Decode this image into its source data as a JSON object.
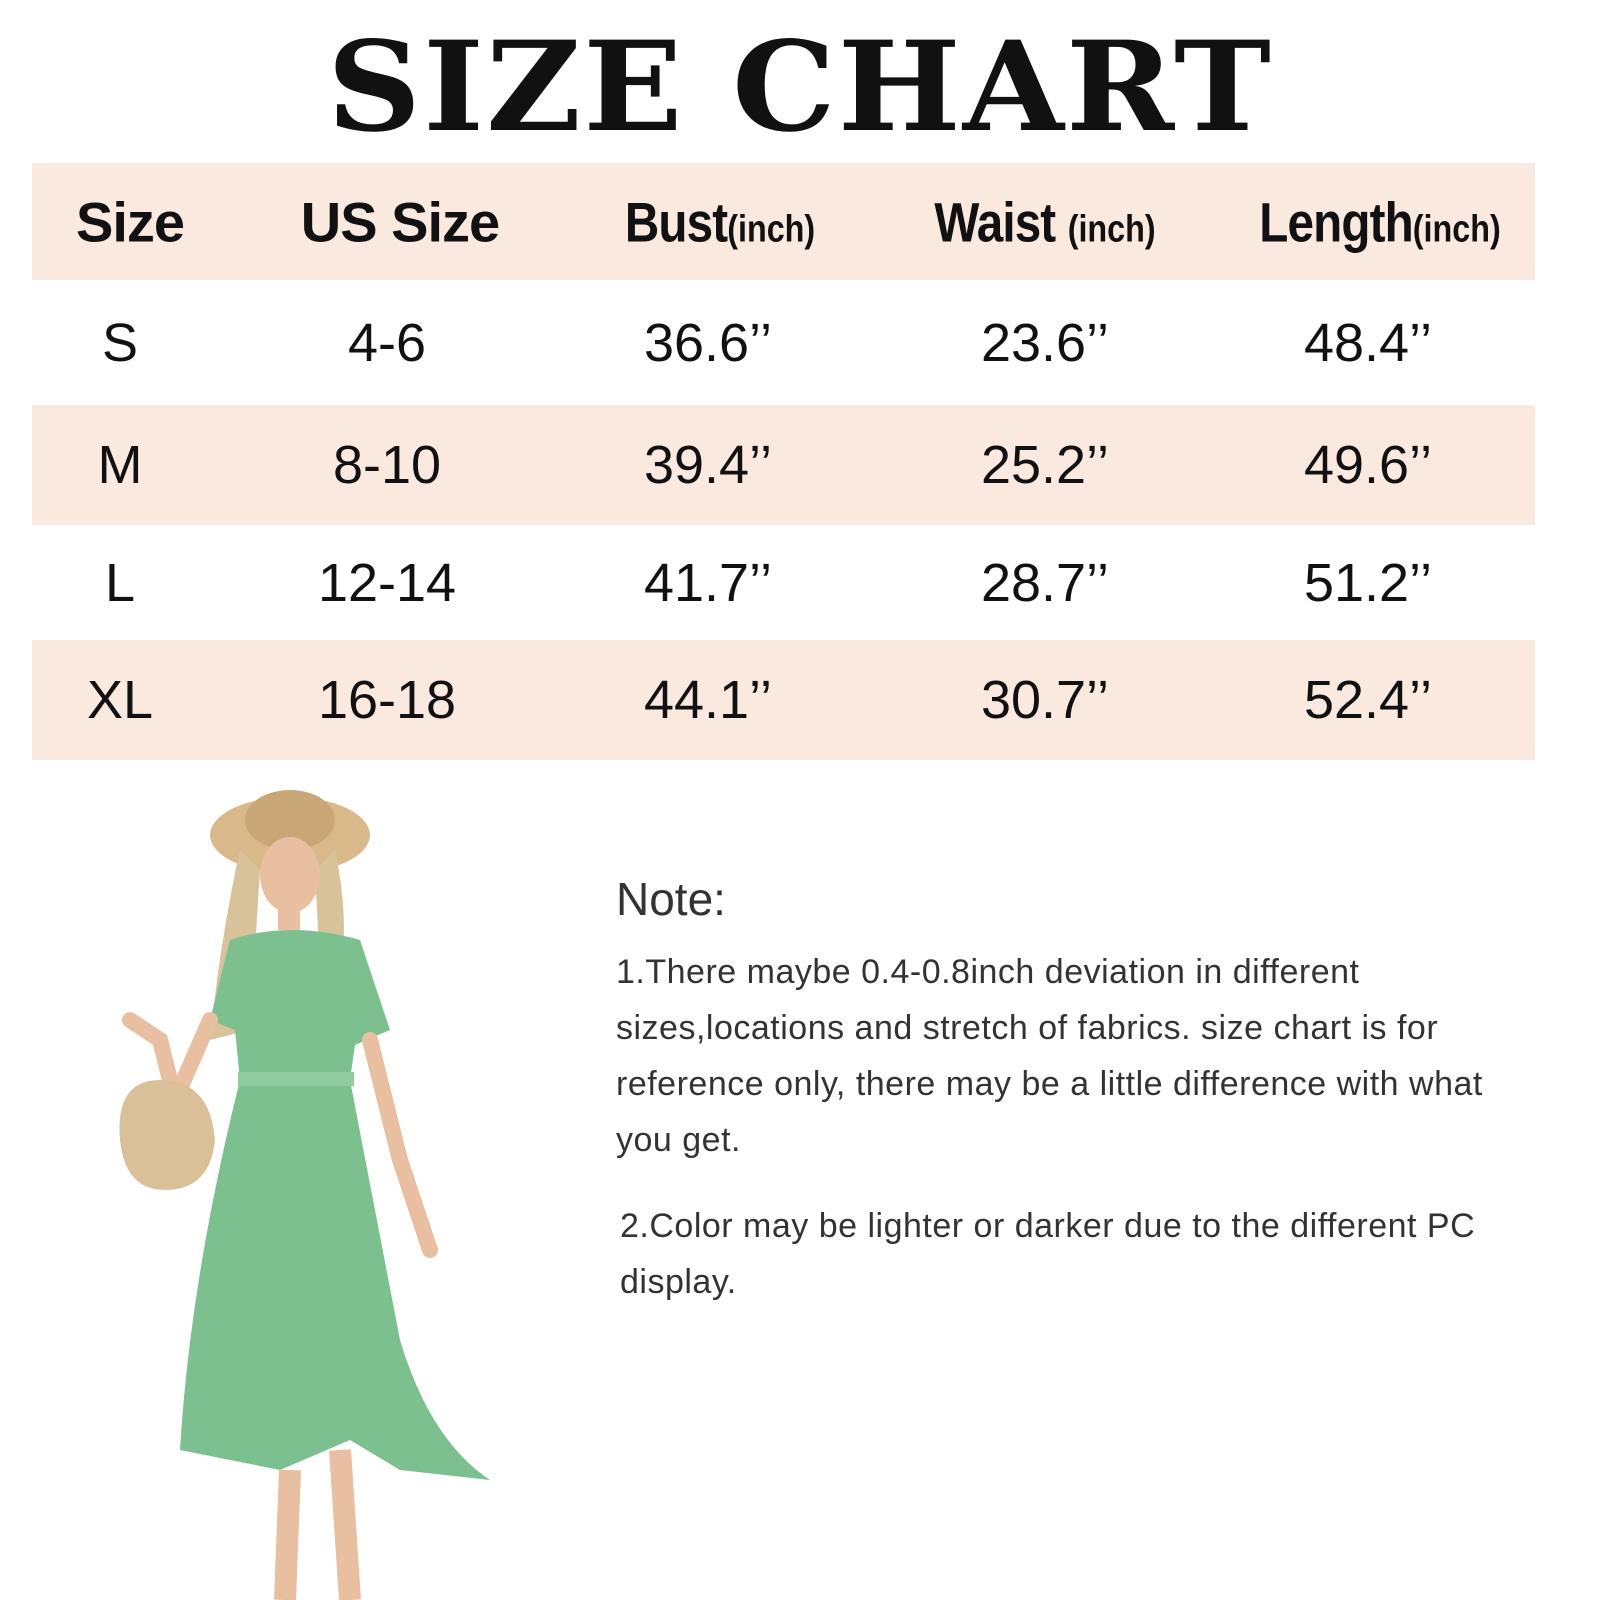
{
  "title": "SIZE CHART",
  "colors": {
    "row_shade": "#f9e9df",
    "text": "#111111",
    "note_text": "#333333"
  },
  "table": {
    "headers": [
      {
        "label": "Size",
        "unit": ""
      },
      {
        "label": "US Size",
        "unit": ""
      },
      {
        "label": "Bust",
        "unit": "(inch)"
      },
      {
        "label": "Waist",
        "unit": "(inch)"
      },
      {
        "label": "Length",
        "unit": "(inch)"
      }
    ],
    "rows": [
      [
        "S",
        "4-6",
        "36.6’’",
        "23.6’’",
        "48.4’’"
      ],
      [
        "M",
        "8-10",
        "39.4’’",
        "25.2’’",
        "49.6’’"
      ],
      [
        "L",
        "12-14",
        "41.7’’",
        "28.7’’",
        "51.2’’"
      ],
      [
        "XL",
        "16-18",
        "44.1’’",
        "30.7’’",
        "52.4’’"
      ]
    ]
  },
  "notes": {
    "heading": "Note:",
    "items": [
      "1.There maybe 0.4-0.8inch deviation in different sizes,locations and stretch of fabrics. size chart is for reference only, there may be a little difference with what you get.",
      "2.Color may be lighter or darker due to the different PC display."
    ]
  },
  "image": {
    "subject": "model-in-green-floral-wrap-dress",
    "dress_color": "#7cc08f",
    "hat_color": "#d9b98a"
  }
}
